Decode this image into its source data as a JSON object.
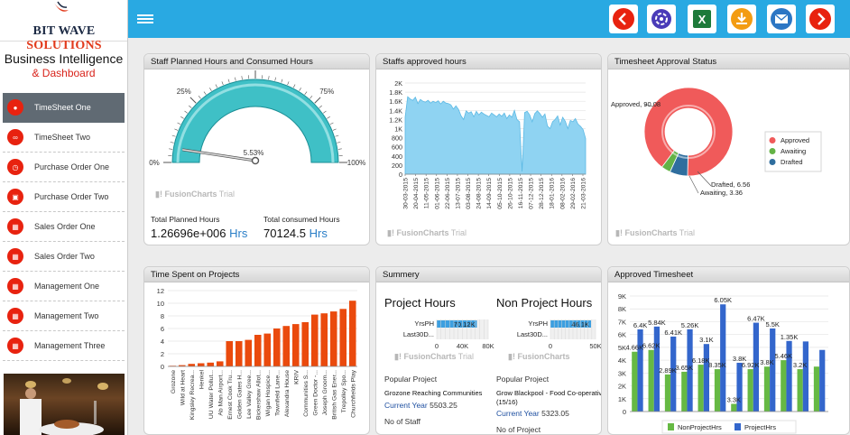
{
  "brand": {
    "name_part1": "BIT WAVE",
    "name_part2": " SOLUTIONS",
    "title": "Business Intelligence",
    "subtitle": "& Dashboard"
  },
  "colors": {
    "topbar": "#29a9e2",
    "accent_red": "#e8220f",
    "active_item": "#606a73",
    "area": "#8fd3f2",
    "bar_orange": "#ea4a0d",
    "bar_green": "#66b944",
    "bar_blue": "#3366cc"
  },
  "menu": [
    {
      "label": "TimeSheet One",
      "icon": "user-icon",
      "active": true
    },
    {
      "label": "TimeSheet Two",
      "icon": "bicycle-icon",
      "active": false
    },
    {
      "label": "Purchase Order One",
      "icon": "clock-icon",
      "active": false
    },
    {
      "label": "Purchase Order Two",
      "icon": "money-icon",
      "active": false
    },
    {
      "label": "Sales Order One",
      "icon": "grid-icon",
      "active": false
    },
    {
      "label": "Sales Order Two",
      "icon": "grid-icon",
      "active": false
    },
    {
      "label": "Management One",
      "icon": "grid-icon",
      "active": false
    },
    {
      "label": "Management Two",
      "icon": "grid-icon",
      "active": false
    },
    {
      "label": "Management Three",
      "icon": "grid-icon",
      "active": false
    }
  ],
  "toolbar": {
    "icons": [
      "chevron-left-icon",
      "refresh-icon",
      "excel-icon",
      "download-icon",
      "email-icon",
      "chevron-right-icon"
    ]
  },
  "fc_trial": {
    "brand": "FusionCharts",
    "suffix": " Trial"
  },
  "panels": {
    "staff_hours": {
      "title": "Staff Planned Hours and Consumed Hours",
      "gauge": {
        "ticks": [
          "0%",
          "25%",
          "50%",
          "75%",
          "100%"
        ],
        "value_label": "5.53%",
        "value": 5.53
      },
      "planned_label": "Total Planned Hours",
      "planned_value": "1.26696e+006",
      "planned_unit": "Hrs",
      "consumed_label": "Total consumed Hours",
      "consumed_value": "70124.5",
      "consumed_unit": "Hrs"
    },
    "staffs_approved": {
      "title": "Staffs approved hours"
    },
    "timesheet_status": {
      "title": "Timesheet Approval Status",
      "labels": {
        "approved": "Approved, 90.08",
        "drafted": "Drafted, 6.56",
        "awaiting": "Awaiting, 3.36"
      },
      "legend": [
        "Approved",
        "Awaiting",
        "Drafted"
      ]
    },
    "time_spent": {
      "title": "Time Spent on Projects"
    },
    "summary": {
      "title": "Summery",
      "project_head": "Project Hours",
      "nonproject_head": "Non Project Hours",
      "row1": "YrsPH",
      "row2": "Last30D...",
      "bar1_value": "70.12K",
      "bar2_value": "46.1K",
      "axis1": [
        "0",
        "40K",
        "80K"
      ],
      "axis2": [
        "0",
        "50K"
      ],
      "popular_label": "Popular Project",
      "popular1": "Grozone Reaching Communities",
      "popular2_line1": "Grow Blackpool - Food Co-operative -",
      "popular2_line2": "(15/16)",
      "current_year_label": "Current Year",
      "current_year1": "5503.25",
      "current_year2": "5323.05",
      "no_staff": "No of Staff",
      "no_project": "No of Project"
    },
    "approved_ts": {
      "title": "Approved Timesheet",
      "legend": [
        "NonProjectHrs",
        "ProjectHrs"
      ]
    }
  },
  "chart_data": [
    {
      "type": "area",
      "title": "Staffs approved hours",
      "ylim": [
        0,
        2000
      ],
      "y_ticks": [
        "0",
        "200",
        "400",
        "600",
        "800",
        "1K",
        "1.2K",
        "1.4K",
        "1.6K",
        "1.8K",
        "2K"
      ],
      "x_ticks": [
        "30-03-2015",
        "20-04-2015",
        "11-05-2015",
        "01-06-2015",
        "22-06-2015",
        "13-07-2015",
        "03-08-2015",
        "24-08-2015",
        "14-09-2015",
        "05-10-2015",
        "26-10-2015",
        "16-11-2015",
        "07-12-2015",
        "28-12-2015",
        "18-01-2016",
        "08-02-2016",
        "29-02-2016",
        "21-03-2016"
      ],
      "values": [
        1250,
        1700,
        1650,
        1620,
        1690,
        1550,
        1640,
        1600,
        1580,
        1620,
        1560,
        1600,
        1570,
        1610,
        1540,
        1600,
        1560,
        1550,
        1520,
        1430,
        1500,
        1420,
        1280,
        1200,
        1390,
        1340,
        1370,
        1260,
        1380,
        1300,
        1360,
        1320,
        1290,
        1260,
        1340,
        1300,
        1260,
        1320,
        1270,
        1340,
        1220,
        1300,
        1250,
        1400,
        1200,
        1150,
        60,
        1350,
        1380,
        1300,
        1150,
        1330,
        1390,
        1330,
        1250,
        1320,
        1060,
        1000,
        1150,
        1200,
        1280,
        1080,
        1250,
        1160,
        1000,
        1180,
        1150,
        1220,
        1100,
        1050,
        980,
        780
      ]
    },
    {
      "type": "pie",
      "title": "Timesheet Approval Status",
      "slices": [
        {
          "label": "Approved",
          "value": 90.08,
          "color": "#f05a5a"
        },
        {
          "label": "Drafted",
          "value": 6.56,
          "color": "#2f6e9e"
        },
        {
          "label": "Awaiting",
          "value": 3.36,
          "color": "#64b346"
        }
      ]
    },
    {
      "type": "bar",
      "title": "Time Spent on Projects",
      "ylim": [
        0,
        12
      ],
      "y_ticks": [
        "0",
        "2",
        "4",
        "6",
        "8",
        "10",
        "12"
      ],
      "categories": [
        "Grozone",
        "Wild at Heart",
        "Kingsley Recrea...",
        "Henkel",
        "UU Water Pollut...",
        "Ab Man Airport...",
        "Ernest Cook Tru...",
        "Golden Gates H...",
        "Lee Valley Gree...",
        "Bickershaw Allot...",
        "Wigan Hospice...",
        "Townfield Lane...",
        "Alexandra House",
        "KRIV",
        "Communities S...",
        "Green Doctor -...",
        "Joseph Groom...",
        "British Gas Ener...",
        "Trepolley Spo...",
        "Churchfields Play"
      ],
      "values": [
        0.1,
        0.2,
        0.4,
        0.5,
        0.6,
        0.8,
        4.0,
        4.0,
        4.2,
        5.0,
        5.2,
        6.0,
        6.4,
        6.7,
        7.0,
        8.2,
        8.4,
        8.7,
        9.1,
        10.4
      ]
    },
    {
      "type": "bar",
      "title": "Approved Timesheet",
      "ylim": [
        0,
        9000
      ],
      "y_ticks": [
        "0",
        "1K",
        "2K",
        "3K",
        "4K",
        "5K",
        "6K",
        "7K",
        "8K",
        "9K"
      ],
      "series": [
        {
          "name": "NonProjectHrs",
          "values": [
            4660,
            4800,
            2890,
            3100,
            3650,
            3300,
            600,
            3300,
            3500,
            4000,
            3300,
            3500
          ]
        },
        {
          "name": "ProjectHrs",
          "values": [
            6400,
            6620,
            5840,
            6410,
            5260,
            8350,
            3800,
            6920,
            6470,
            5500,
            5460,
            4800
          ]
        }
      ],
      "data_labels": [
        "4.66K",
        "6.4K",
        "6.62K",
        "5.84K",
        "2.89K",
        "6.41K",
        "3.65K",
        "5.26K",
        "6.18K",
        "3.1K",
        "8.35K",
        "6.05K",
        "3.3K",
        "3.8K",
        "6.92K",
        "6.47K",
        "3.8K",
        "5.5K",
        "5.46K",
        "1.35K",
        "3.2K"
      ]
    }
  ]
}
